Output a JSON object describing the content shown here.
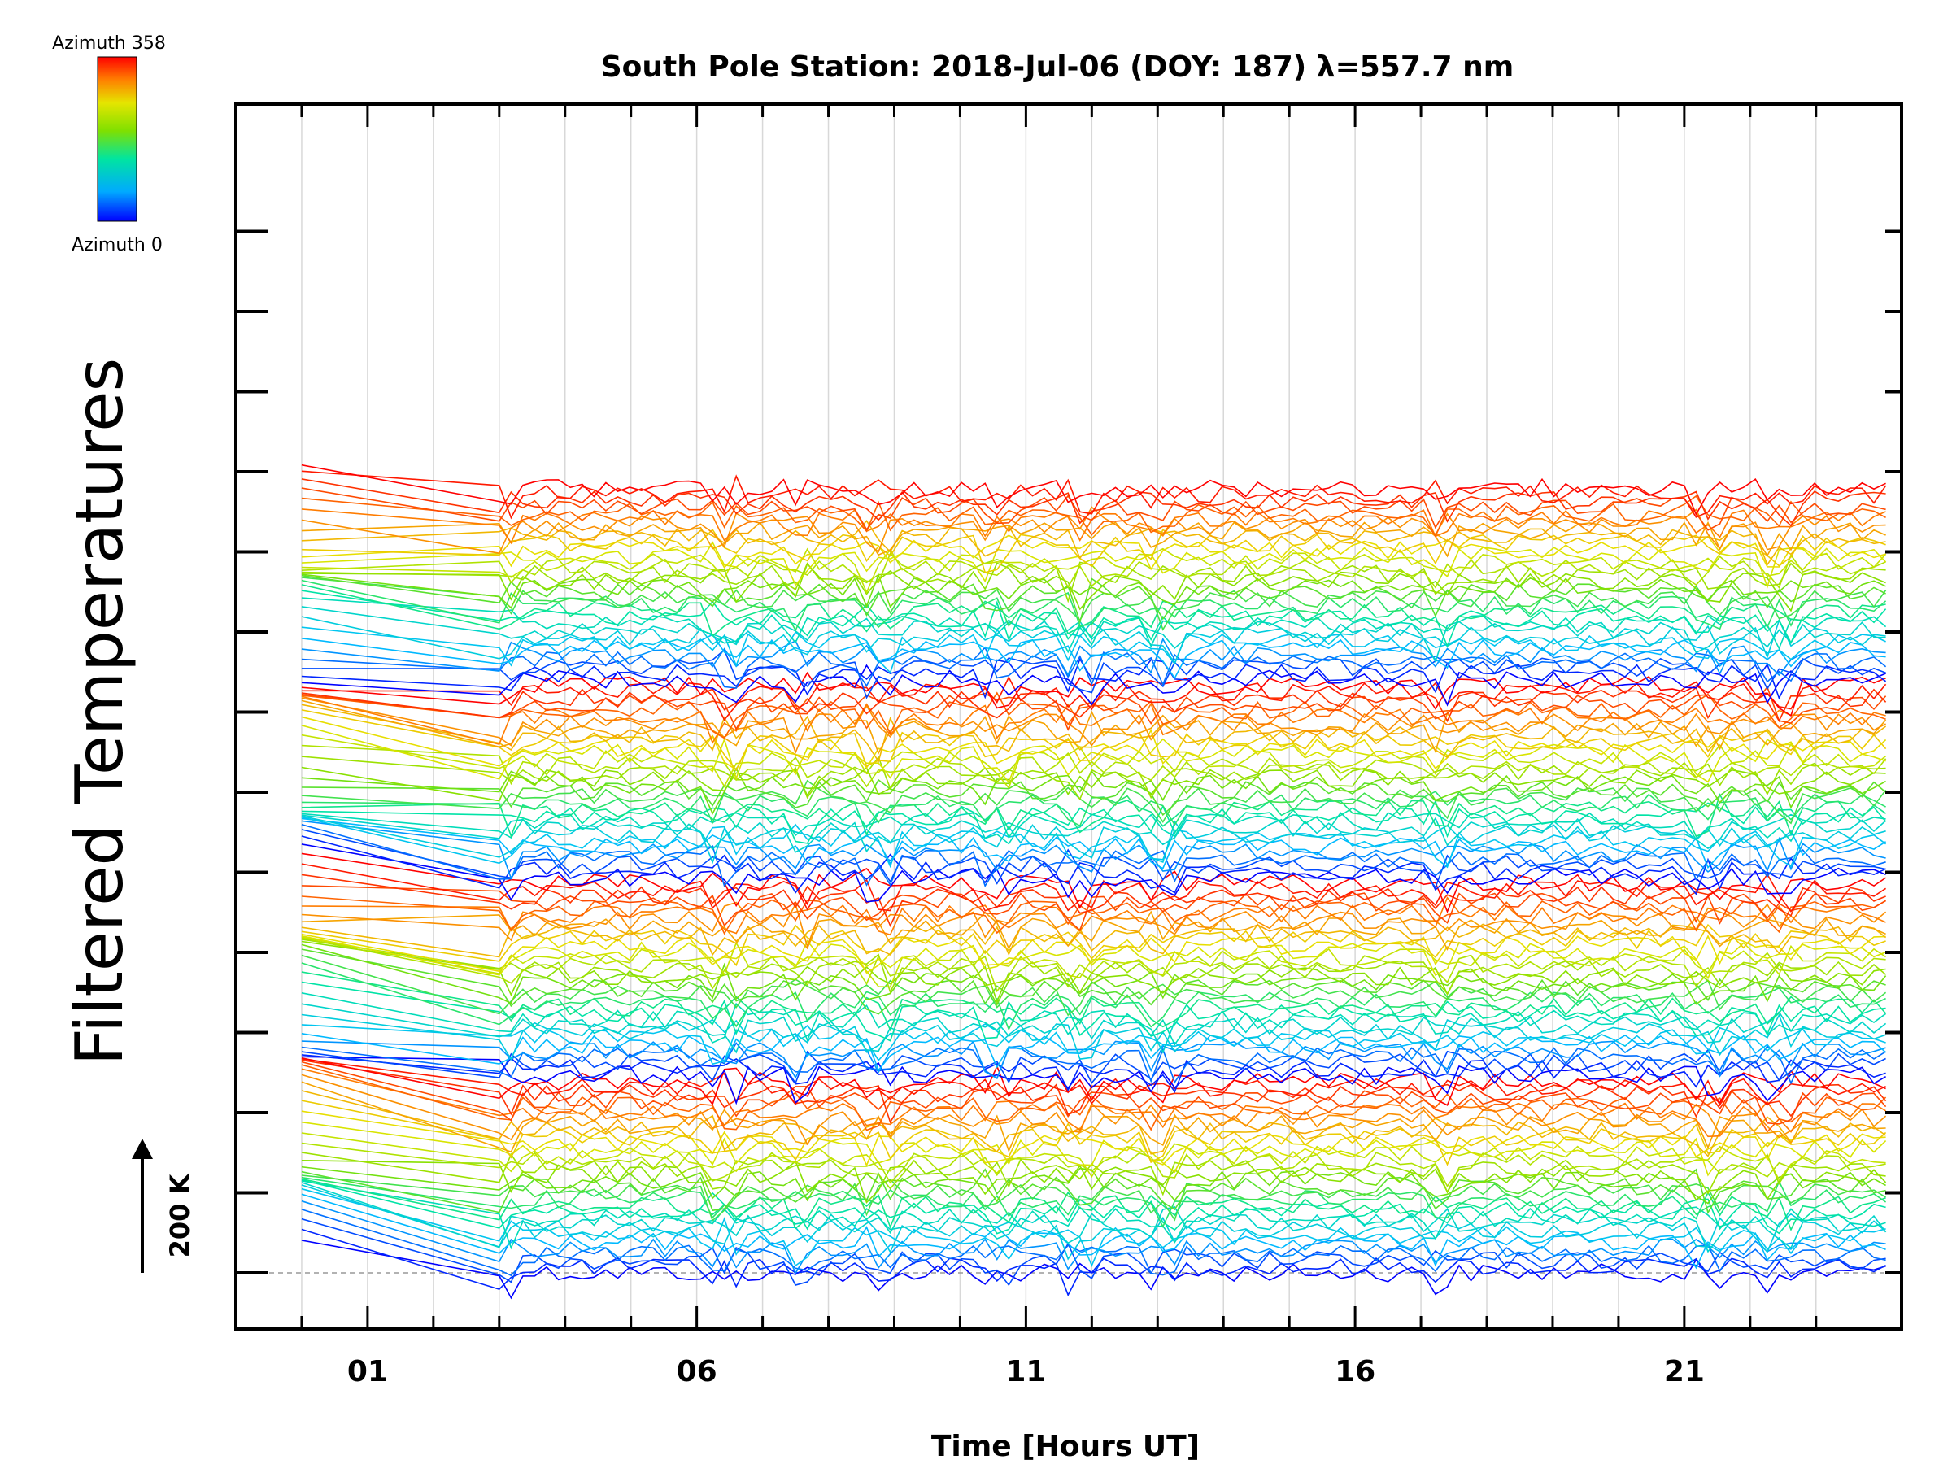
{
  "chart_data": {
    "type": "line",
    "title": "South Pole Station: 2018-Jul-06 (DOY: 187) λ=557.7 nm",
    "xlabel": "Time [Hours UT]",
    "ylabel": "Filtered Temperatures",
    "x_ticks": [
      1,
      6,
      11,
      16,
      21
    ],
    "x_tick_labels": [
      "01",
      "06",
      "11",
      "16",
      "21"
    ],
    "xlim": [
      -1,
      24.3
    ],
    "scale_bar_label": "200 K",
    "colorbar": {
      "top_label": "Azimuth 358",
      "bottom_label": "Azimuth 0",
      "colors": [
        "#0000ff",
        "#00bfff",
        "#00e5a0",
        "#7fe000",
        "#e5e500",
        "#ff8000",
        "#ff0000"
      ]
    },
    "grid": true,
    "n_traces": 128
  }
}
